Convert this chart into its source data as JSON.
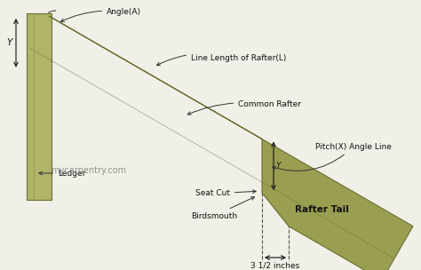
{
  "bg_color": "#f0f0e8",
  "rafter_color": "#9a9e50",
  "rafter_edge": "#6b6e30",
  "rafter_dark": "#7a7e35",
  "ledger_color": "#b0b468",
  "ledger_edge": "#6b6e30",
  "text_color": "#111111",
  "arrow_color": "#333333",
  "watermark": "mycarpentry.com",
  "labels": {
    "angle_a": "Angle(A)",
    "line_length": "Line Length of Rafter(L)",
    "common_rafter": "Common Rafter",
    "ledger": "Ledger",
    "pitch_x": "Pitch(X) Angle Line",
    "seat_cut": "Seat Cut",
    "birdsmouth": "Birdsmouth",
    "dimension": "3 1/2 inches",
    "rafter_tail": "Rafter Tail",
    "y_label": "Y"
  },
  "font_size": 6.5,
  "font_size_label": 7.5
}
